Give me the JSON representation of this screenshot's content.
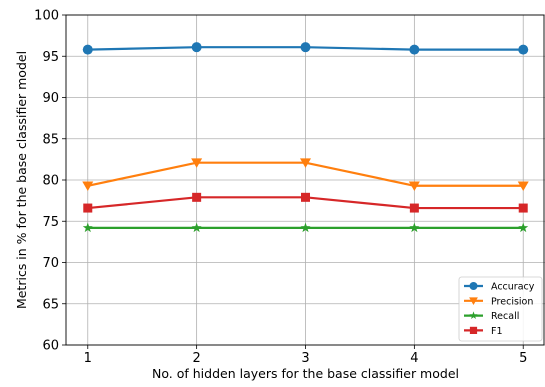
{
  "chart_data": {
    "type": "line",
    "xlabel": "No. of hidden layers for the base classifier model",
    "ylabel": "Metrics in % for the base classifier model",
    "x": [
      1,
      2,
      3,
      4,
      5
    ],
    "xlim": [
      0.8,
      5.2
    ],
    "ylim": [
      60,
      100
    ],
    "yticks": [
      60,
      65,
      70,
      75,
      80,
      85,
      90,
      95,
      100
    ],
    "grid": true,
    "legend_position": "lower-right",
    "series": [
      {
        "name": "Accuracy",
        "color": "#1f77b4",
        "marker": "circle",
        "values": [
          95.8,
          96.1,
          96.1,
          95.8,
          95.8
        ]
      },
      {
        "name": "Precision",
        "color": "#ff7f0e",
        "marker": "triangle-down",
        "values": [
          79.3,
          82.1,
          82.1,
          79.3,
          79.3
        ]
      },
      {
        "name": "Recall",
        "color": "#2ca02c",
        "marker": "star",
        "values": [
          74.2,
          74.2,
          74.2,
          74.2,
          74.2
        ]
      },
      {
        "name": "F1",
        "color": "#d62728",
        "marker": "square",
        "values": [
          76.6,
          77.9,
          77.9,
          76.6,
          76.6
        ]
      }
    ]
  }
}
